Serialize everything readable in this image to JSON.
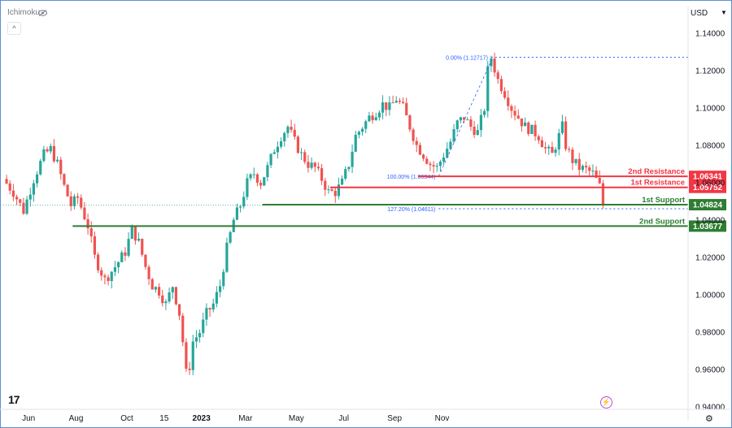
{
  "header": {
    "indicator_label": "Ichimoku",
    "currency": "USD"
  },
  "icons": {
    "visibility": "eye-icon",
    "collapse": "chevron-up-icon",
    "logo": "tradingview-logo",
    "bolt": "lightning-icon",
    "settings": "gear-icon"
  },
  "colors": {
    "up": "#26a69a",
    "down": "#ef5350",
    "resistance": "#f23645",
    "support": "#2e7d32",
    "fib": "#2962ff",
    "axis_text": "#131722"
  },
  "chart_data": {
    "type": "candlestick",
    "x_ticks": [
      "Jun",
      "Aug",
      "Oct",
      "15",
      "2023",
      "Mar",
      "May",
      "Jul",
      "Sep",
      "Nov"
    ],
    "y_ticks": [
      "1.14000",
      "1.12000",
      "1.10000",
      "1.08000",
      "1.06000",
      "1.04000",
      "1.02000",
      "1.00000",
      "0.98000",
      "0.96000",
      "0.94000"
    ],
    "ylim": [
      0.94,
      1.14
    ],
    "price_path": [
      [
        0,
        1.062
      ],
      [
        3,
        1.055
      ],
      [
        6,
        1.045
      ],
      [
        9,
        1.062
      ],
      [
        12,
        1.075
      ],
      [
        14,
        1.078
      ],
      [
        16,
        1.07
      ],
      [
        18,
        1.058
      ],
      [
        20,
        1.048
      ],
      [
        22,
        1.052
      ],
      [
        25,
        1.037
      ],
      [
        27,
        1.02
      ],
      [
        30,
        1.008
      ],
      [
        33,
        1.015
      ],
      [
        36,
        1.023
      ],
      [
        38,
        1.035
      ],
      [
        40,
        1.028
      ],
      [
        42,
        1.015
      ],
      [
        44,
        1.005
      ],
      [
        46,
        1.002
      ],
      [
        48,
        0.995
      ],
      [
        50,
        1.005
      ],
      [
        52,
        0.99
      ],
      [
        53,
        0.975
      ],
      [
        54,
        0.958
      ],
      [
        55,
        0.962
      ],
      [
        56,
        0.975
      ],
      [
        58,
        0.98
      ],
      [
        60,
        0.99
      ],
      [
        62,
        0.995
      ],
      [
        64,
        1.005
      ],
      [
        66,
        1.025
      ],
      [
        68,
        1.04
      ],
      [
        70,
        1.048
      ],
      [
        72,
        1.06
      ],
      [
        74,
        1.065
      ],
      [
        76,
        1.06
      ],
      [
        78,
        1.068
      ],
      [
        80,
        1.078
      ],
      [
        82,
        1.085
      ],
      [
        84,
        1.09
      ],
      [
        86,
        1.082
      ],
      [
        88,
        1.075
      ],
      [
        90,
        1.07
      ],
      [
        92,
        1.068
      ],
      [
        94,
        1.062
      ],
      [
        96,
        1.055
      ],
      [
        98,
        1.055
      ],
      [
        100,
        1.06
      ],
      [
        102,
        1.07
      ],
      [
        104,
        1.085
      ],
      [
        106,
        1.09
      ],
      [
        108,
        1.095
      ],
      [
        110,
        1.098
      ],
      [
        112,
        1.102
      ],
      [
        114,
        1.1
      ],
      [
        116,
        1.105
      ],
      [
        118,
        1.1
      ],
      [
        120,
        1.09
      ],
      [
        122,
        1.08
      ],
      [
        124,
        1.075
      ],
      [
        126,
        1.07
      ],
      [
        128,
        1.068
      ],
      [
        130,
        1.075
      ],
      [
        132,
        1.082
      ],
      [
        134,
        1.092
      ],
      [
        136,
        1.095
      ],
      [
        138,
        1.09
      ],
      [
        140,
        1.087
      ],
      [
        142,
        1.1
      ],
      [
        143,
        1.12
      ],
      [
        144,
        1.127
      ],
      [
        146,
        1.115
      ],
      [
        148,
        1.108
      ],
      [
        150,
        1.1
      ],
      [
        152,
        1.095
      ],
      [
        154,
        1.09
      ],
      [
        156,
        1.088
      ],
      [
        158,
        1.085
      ],
      [
        160,
        1.078
      ],
      [
        162,
        1.075
      ],
      [
        164,
        1.085
      ],
      [
        165,
        1.09
      ],
      [
        166,
        1.08
      ],
      [
        168,
        1.072
      ],
      [
        170,
        1.068
      ],
      [
        172,
        1.067
      ],
      [
        174,
        1.065
      ],
      [
        176,
        1.058
      ],
      [
        177,
        1.048
      ]
    ],
    "levels": [
      {
        "kind": "resistance",
        "label": "2nd Resistance",
        "value": "1.06341",
        "price": 1.06341
      },
      {
        "kind": "resistance",
        "label": "1st Resistance",
        "value": "1.05752",
        "price": 1.05752
      },
      {
        "kind": "support",
        "label": "1st Support",
        "value": "1.04824",
        "price": 1.04824
      },
      {
        "kind": "support",
        "label": "2nd Support",
        "value": "1.03677",
        "price": 1.03677
      }
    ],
    "fib_levels": [
      {
        "label": "0.00% (1.12717)",
        "price": 1.12717
      },
      {
        "label": "100.00% (1.06344)",
        "price": 1.06344
      },
      {
        "label": "127.20% (1.04611)",
        "price": 1.04611
      }
    ]
  }
}
